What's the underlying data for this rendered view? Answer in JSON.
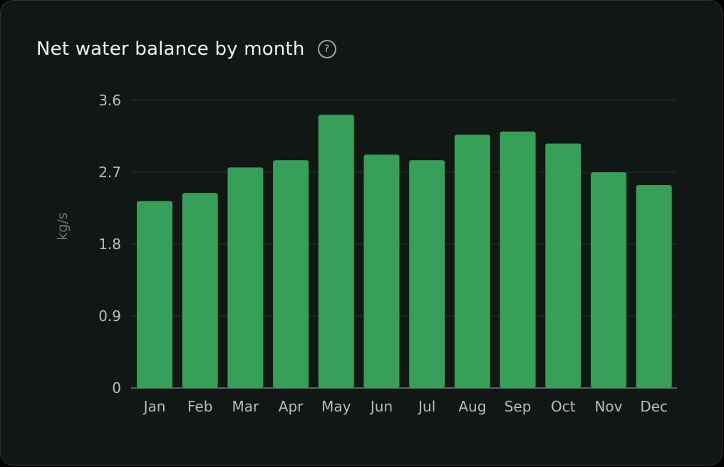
{
  "header": {
    "title": "Net water balance by month",
    "help_icon_glyph": "?"
  },
  "colors": {
    "bar": "#36a058",
    "gridline": "#2a302d",
    "baseline": "#5b615e"
  },
  "chart_data": {
    "type": "bar",
    "title": "Net water balance by month",
    "xlabel": "",
    "ylabel": "kg/s",
    "ylim": [
      0,
      3.6
    ],
    "yticks": [
      "0",
      "0.9",
      "1.8",
      "2.7",
      "3.6"
    ],
    "grid": true,
    "legend": "none",
    "categories": [
      "Jan",
      "Feb",
      "Mar",
      "Apr",
      "May",
      "Jun",
      "Jul",
      "Aug",
      "Sep",
      "Oct",
      "Nov",
      "Dec"
    ],
    "values": [
      2.34,
      2.44,
      2.76,
      2.85,
      3.42,
      2.92,
      2.85,
      3.17,
      3.21,
      3.06,
      2.7,
      2.54
    ]
  }
}
